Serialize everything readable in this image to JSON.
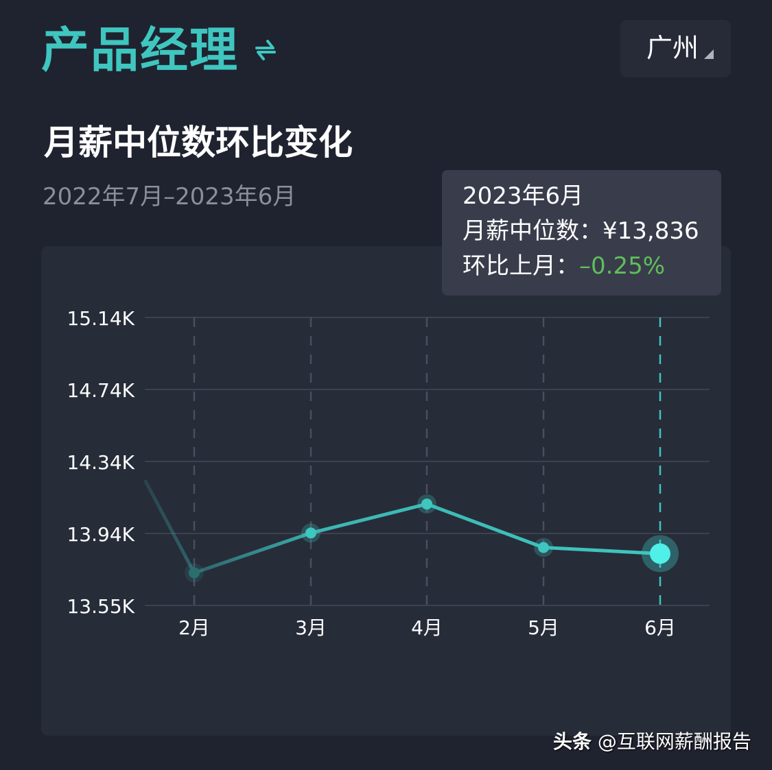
{
  "header": {
    "job_title": "产品经理",
    "swap_icon": "swap-arrows-icon",
    "city": "广州"
  },
  "section": {
    "title": "月薪中位数环比变化",
    "date_range": "2022年7月–2023年6月"
  },
  "tooltip": {
    "date": "2023年6月",
    "median_label": "月薪中位数：",
    "median_value": "¥13,836",
    "mom_label": "环比上月：",
    "mom_value": "–0.25%"
  },
  "colors": {
    "accent": "#3ec6bf",
    "highlight_point": "#4ef0e8",
    "negative_change": "#5fbf5a",
    "background": "#1f2330",
    "card": "#272c39",
    "tooltip_bg": "#393d4b"
  },
  "watermark": {
    "source": "头条",
    "account": "@互联网薪酬报告"
  },
  "chart_data": {
    "type": "line",
    "title": "月薪中位数环比变化",
    "subtitle": "2022年7月–2023年6月",
    "xlabel": "",
    "ylabel": "",
    "categories": [
      "2月",
      "3月",
      "4月",
      "5月",
      "6月"
    ],
    "series": [
      {
        "name": "月薪中位数",
        "values": [
          13730,
          13950,
          14110,
          13870,
          13836
        ]
      }
    ],
    "y_ticks": [
      "13.55K",
      "13.94K",
      "14.34K",
      "14.74K",
      "15.14K"
    ],
    "ylim": [
      13550,
      15140
    ],
    "grid": true,
    "highlighted_point": {
      "category": "6月",
      "value": 13836,
      "mom_change": "-0.25%"
    },
    "note": "Line continues off the left edge from a previous (1月) value above 14.34K"
  }
}
